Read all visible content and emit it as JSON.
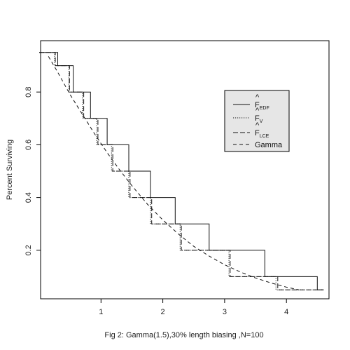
{
  "chart_data": {
    "type": "line",
    "title": "",
    "caption": "Fig 2: Gamma(1.5),30% length biasing ,N=100",
    "xlabel": "",
    "ylabel": "Percent Surviving",
    "xlim": [
      0,
      4.6
    ],
    "ylim": [
      0,
      0.95
    ],
    "x_ticks": [
      1,
      2,
      3,
      4
    ],
    "y_ticks": [
      0.2,
      0.4,
      0.6,
      0.8
    ],
    "grid": false,
    "legend_position": "upper-right",
    "legend_entries": [
      {
        "main": "F",
        "hat": "^",
        "sub": "EDF"
      },
      {
        "main": "F",
        "hat": "^",
        "sub": "V"
      },
      {
        "main": "F",
        "hat": "^",
        "sub": "LCE"
      },
      {
        "main": "Gamma",
        "hat": "",
        "sub": ""
      }
    ],
    "series": [
      {
        "line_style": "solid",
        "x": [
          0.0,
          0.3,
          0.3,
          0.55,
          0.55,
          0.83,
          0.83,
          1.1,
          1.1,
          1.45,
          1.45,
          1.8,
          1.8,
          2.2,
          2.2,
          2.75,
          2.75,
          3.65,
          3.65,
          4.5,
          4.5,
          4.6
        ],
        "y": [
          0.95,
          0.95,
          0.9,
          0.9,
          0.8,
          0.8,
          0.7,
          0.7,
          0.6,
          0.6,
          0.5,
          0.5,
          0.4,
          0.4,
          0.3,
          0.3,
          0.2,
          0.2,
          0.1,
          0.1,
          0.05,
          0.05
        ]
      },
      {
        "line_style": "dotted",
        "x": [
          0.0,
          0.25,
          0.25,
          0.48,
          0.48,
          0.7,
          0.7,
          0.93,
          0.93,
          1.17,
          1.17,
          1.45,
          1.45,
          1.8,
          1.8,
          2.28,
          2.28,
          3.07,
          3.07,
          3.83,
          3.83,
          4.6
        ],
        "y": [
          0.95,
          0.95,
          0.9,
          0.9,
          0.8,
          0.8,
          0.7,
          0.7,
          0.6,
          0.6,
          0.5,
          0.5,
          0.4,
          0.4,
          0.3,
          0.3,
          0.2,
          0.2,
          0.1,
          0.1,
          0.05,
          0.05
        ]
      },
      {
        "line_style": "dashed",
        "x": [
          0.0,
          0.26,
          0.26,
          0.49,
          0.49,
          0.72,
          0.72,
          0.95,
          0.95,
          1.19,
          1.19,
          1.47,
          1.47,
          1.82,
          1.82,
          2.3,
          2.3,
          3.09,
          3.09,
          3.86,
          3.86,
          4.6
        ],
        "y": [
          0.95,
          0.95,
          0.9,
          0.9,
          0.8,
          0.8,
          0.7,
          0.7,
          0.6,
          0.6,
          0.5,
          0.5,
          0.4,
          0.4,
          0.3,
          0.3,
          0.2,
          0.2,
          0.1,
          0.1,
          0.05,
          0.05
        ]
      },
      {
        "line_style": "dashed-long",
        "x": [
          0.15,
          0.3,
          0.5,
          0.7,
          0.9,
          1.1,
          1.3,
          1.5,
          1.75,
          2.0,
          2.25,
          2.5,
          2.75,
          3.0,
          3.25,
          3.5,
          3.75,
          4.0,
          4.2
        ],
        "y": [
          0.935,
          0.875,
          0.79,
          0.715,
          0.64,
          0.57,
          0.505,
          0.445,
          0.375,
          0.315,
          0.262,
          0.215,
          0.178,
          0.145,
          0.118,
          0.095,
          0.076,
          0.06,
          0.05
        ]
      }
    ]
  }
}
